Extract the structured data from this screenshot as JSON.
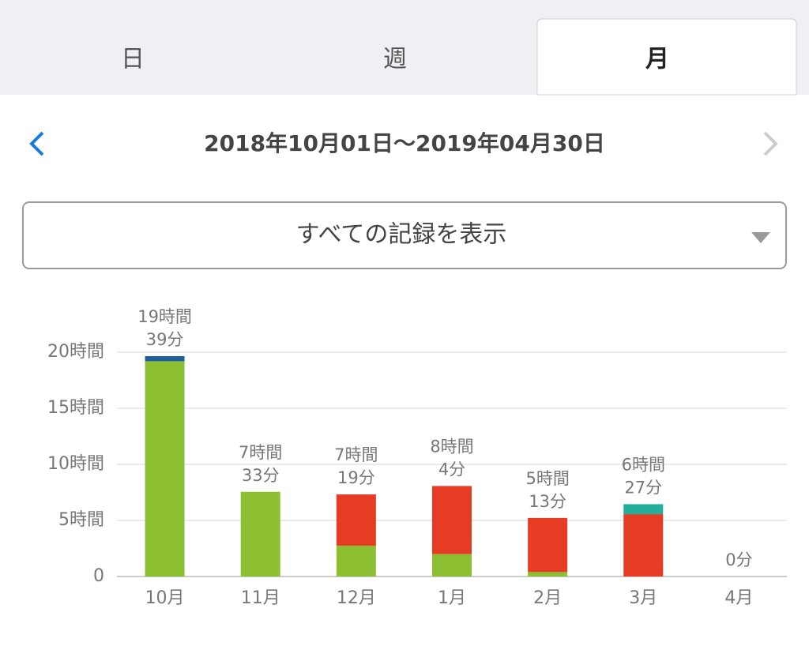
{
  "tabs": [
    "日",
    "週",
    "月"
  ],
  "date_range": "2018年10月01日〜2019年04月30日",
  "filter": "すべての記録を表示",
  "chart_data": {
    "type": "stacked-bar",
    "categories": [
      "10月",
      "11月",
      "12月",
      "1月",
      "2月",
      "3月",
      "4月"
    ],
    "series": [
      {
        "color": "#8cc032",
        "values": [
          19.2,
          7.55,
          2.75,
          2.0,
          0.4,
          0,
          0
        ]
      },
      {
        "color": "#e63c23",
        "values": [
          0,
          0,
          4.57,
          6.07,
          4.82,
          5.56,
          0
        ]
      },
      {
        "color": "#23b09a",
        "values": [
          0,
          0,
          0,
          0,
          0,
          0.89,
          0
        ]
      },
      {
        "color": "#1e5fa0",
        "values": [
          0.45,
          0,
          0,
          0,
          0,
          0,
          0
        ]
      }
    ],
    "totals": [
      19.65,
      7.55,
      7.3167,
      8.0667,
      5.2167,
      6.45,
      0
    ],
    "total_labels": [
      [
        "19時間",
        "39分"
      ],
      [
        "7時間",
        "33分"
      ],
      [
        "7時間",
        "19分"
      ],
      [
        "8時間",
        "4分"
      ],
      [
        "5時間",
        "13分"
      ],
      [
        "6時間",
        "27分"
      ],
      [
        "0分"
      ]
    ],
    "ylim": [
      0,
      20.5
    ],
    "yticks": [
      0,
      {
        "value": 5,
        "label": "5時間"
      },
      {
        "value": 10,
        "label": "10時間"
      },
      {
        "value": 15,
        "label": "15時間"
      },
      {
        "value": 20,
        "label": "20時間"
      }
    ],
    "grid": true
  }
}
